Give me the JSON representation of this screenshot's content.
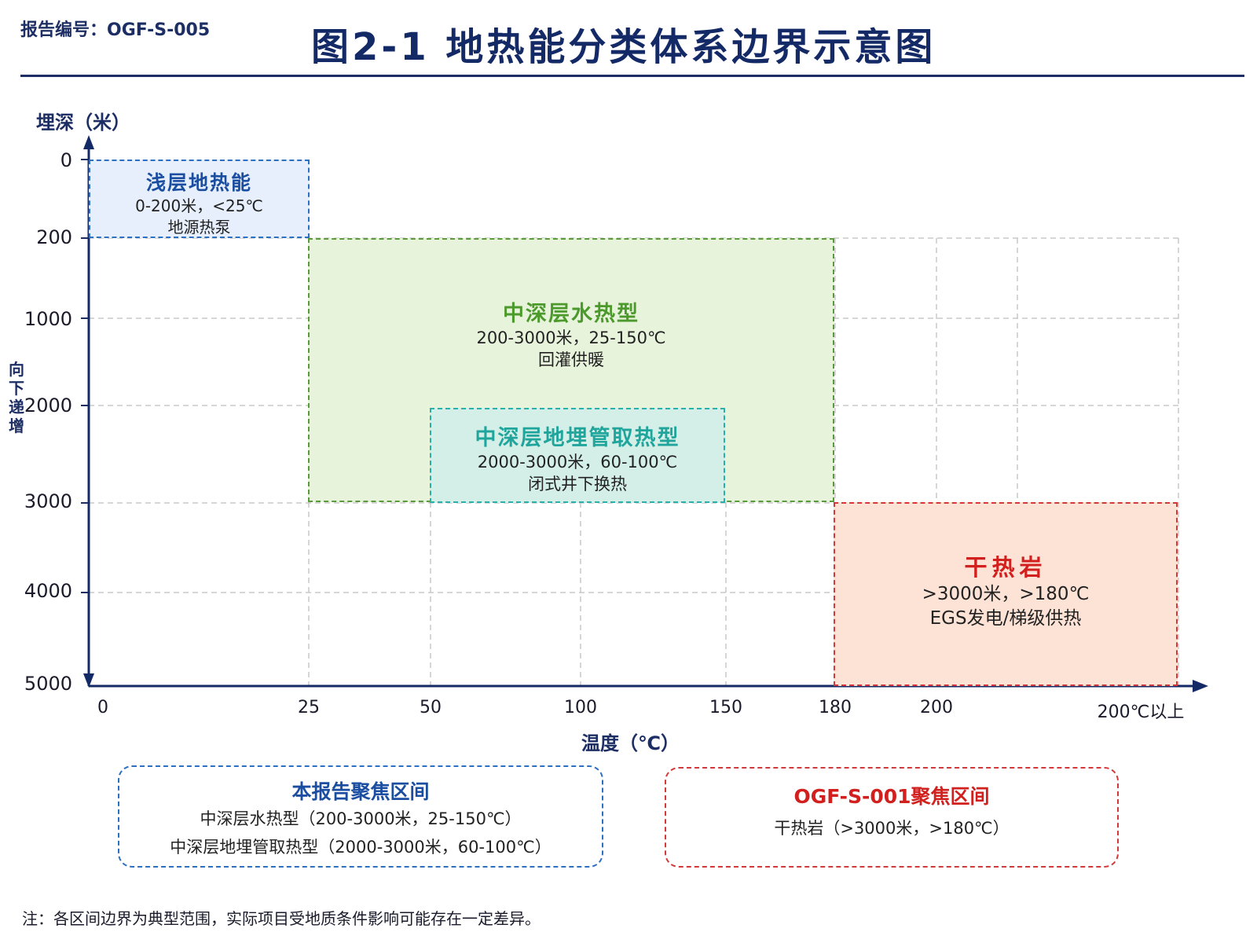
{
  "header": {
    "report_no": "报告编号：OGF-S-005",
    "title": "图2-1  地热能分类体系边界示意图"
  },
  "axes": {
    "y_title": "埋深（米）",
    "y_note": "向下递增",
    "x_title": "温度（℃）"
  },
  "chart_data": {
    "type": "region-diagram",
    "y_ticks": [
      "0",
      "200",
      "1000",
      "2000",
      "3000",
      "4000",
      "5000"
    ],
    "x_ticks": [
      "0",
      "25",
      "50",
      "100",
      "150",
      "180",
      "200",
      "200℃以上"
    ],
    "grid": true,
    "regions": [
      {
        "key": "shallow",
        "name": "浅层地热能",
        "depth_range": [
          0,
          200
        ],
        "temp_range": [
          0,
          25
        ],
        "line1": "0-200米，<25℃",
        "line2": "地源热泵",
        "color": "#2d6fc0"
      },
      {
        "key": "hydro",
        "name": "中深层水热型",
        "depth_range": [
          200,
          3000
        ],
        "temp_range": [
          25,
          150
        ],
        "line1": "200-3000米，25-150℃",
        "line2": "回灌供暖",
        "color": "#5a9a3a"
      },
      {
        "key": "pipe",
        "name": "中深层地埋管取热型",
        "depth_range": [
          2000,
          3000
        ],
        "temp_range": [
          60,
          100
        ],
        "line1": "2000-3000米，60-100℃",
        "line2": "闭式井下换热",
        "color": "#2ab0a8"
      },
      {
        "key": "hdr",
        "name": "干热岩",
        "depth_range": [
          3000,
          5000
        ],
        "temp_range": [
          180,
          200
        ],
        "line1": ">3000米，>180℃",
        "line2": "EGS发电/梯级供热",
        "color": "#d23a3a"
      }
    ]
  },
  "focus": {
    "this_report": {
      "title": "本报告聚焦区间",
      "line1": "中深层水热型（200-3000米，25-150℃）",
      "line2": "中深层地埋管取热型（2000-3000米，60-100℃）"
    },
    "other_report": {
      "title": "OGF-S-001聚焦区间",
      "line1": "干热岩（>3000米，>180℃）"
    }
  },
  "footnote": "注：各区间边界为典型范围，实际项目受地质条件影响可能存在一定差异。"
}
